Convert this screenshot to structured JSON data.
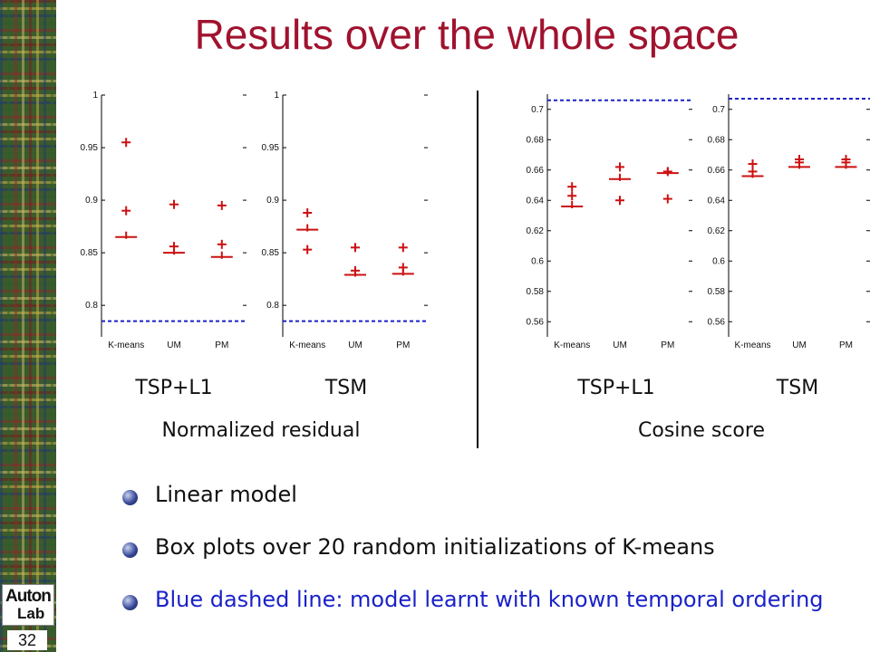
{
  "slide": {
    "title": "Results over the whole space",
    "page_number": "32",
    "logo_line1": "Auton",
    "logo_line2": "Lab"
  },
  "bullets": [
    {
      "text": "Linear model",
      "color": "#111111"
    },
    {
      "text": "Box plots over 20 random initializations of K-means",
      "color": "#111111"
    },
    {
      "text": "Blue dashed line: model learnt with known temporal ordering",
      "color": "#1a22c8"
    }
  ],
  "group_labels": {
    "left": "Normalized residual",
    "right": "Cosine score"
  },
  "chart_data": [
    {
      "type": "box",
      "title": "TSP+L1",
      "group": "Normalized residual",
      "categories": [
        "K-means",
        "UM",
        "PM"
      ],
      "ylim": [
        0.77,
        1.0
      ],
      "yticks": [
        "1",
        "0.95",
        "0.9",
        "0.85",
        "0.8"
      ],
      "baseline_dashed": 0.785,
      "medians": [
        0.865,
        0.85,
        0.846
      ],
      "outliers": [
        [
          0.955,
          0.89
        ],
        [
          0.896,
          0.856
        ],
        [
          0.895,
          0.858
        ]
      ],
      "colors": {
        "marks": "#cc1111",
        "baseline": "#1a22c8"
      }
    },
    {
      "type": "box",
      "title": "TSM",
      "group": "Normalized residual",
      "categories": [
        "K-means",
        "UM",
        "PM"
      ],
      "ylim": [
        0.77,
        1.0
      ],
      "yticks": [
        "1",
        "0.95",
        "0.9",
        "0.85",
        "0.8"
      ],
      "baseline_dashed": 0.785,
      "medians": [
        0.872,
        0.829,
        0.83
      ],
      "outliers": [
        [
          0.888,
          0.853
        ],
        [
          0.855,
          0.833
        ],
        [
          0.855,
          0.836
        ]
      ],
      "colors": {
        "marks": "#cc1111",
        "baseline": "#1a22c8"
      }
    },
    {
      "type": "box",
      "title": "TSP+L1",
      "group": "Cosine score",
      "categories": [
        "K-means",
        "UM",
        "PM"
      ],
      "ylim": [
        0.55,
        0.71
      ],
      "yticks": [
        "0.7",
        "0.68",
        "0.66",
        "0.64",
        "0.62",
        "0.6",
        "0.58",
        "0.56"
      ],
      "baseline_dashed": 0.706,
      "medians": [
        0.636,
        0.654,
        0.658
      ],
      "outliers": [
        [
          0.649,
          0.643
        ],
        [
          0.662,
          0.64
        ],
        [
          0.659,
          0.641
        ]
      ],
      "colors": {
        "marks": "#cc1111",
        "baseline": "#1a22c8"
      }
    },
    {
      "type": "box",
      "title": "TSM",
      "group": "Cosine score",
      "categories": [
        "K-means",
        "UM",
        "PM"
      ],
      "ylim": [
        0.55,
        0.71
      ],
      "yticks": [
        "0.7",
        "0.68",
        "0.66",
        "0.64",
        "0.62",
        "0.6",
        "0.58",
        "0.56"
      ],
      "baseline_dashed": 0.707,
      "medians": [
        0.656,
        0.662,
        0.662
      ],
      "outliers": [
        [
          0.664,
          0.659
        ],
        [
          0.667,
          0.665
        ],
        [
          0.667,
          0.665
        ]
      ],
      "colors": {
        "marks": "#cc1111",
        "baseline": "#1a22c8"
      }
    }
  ]
}
